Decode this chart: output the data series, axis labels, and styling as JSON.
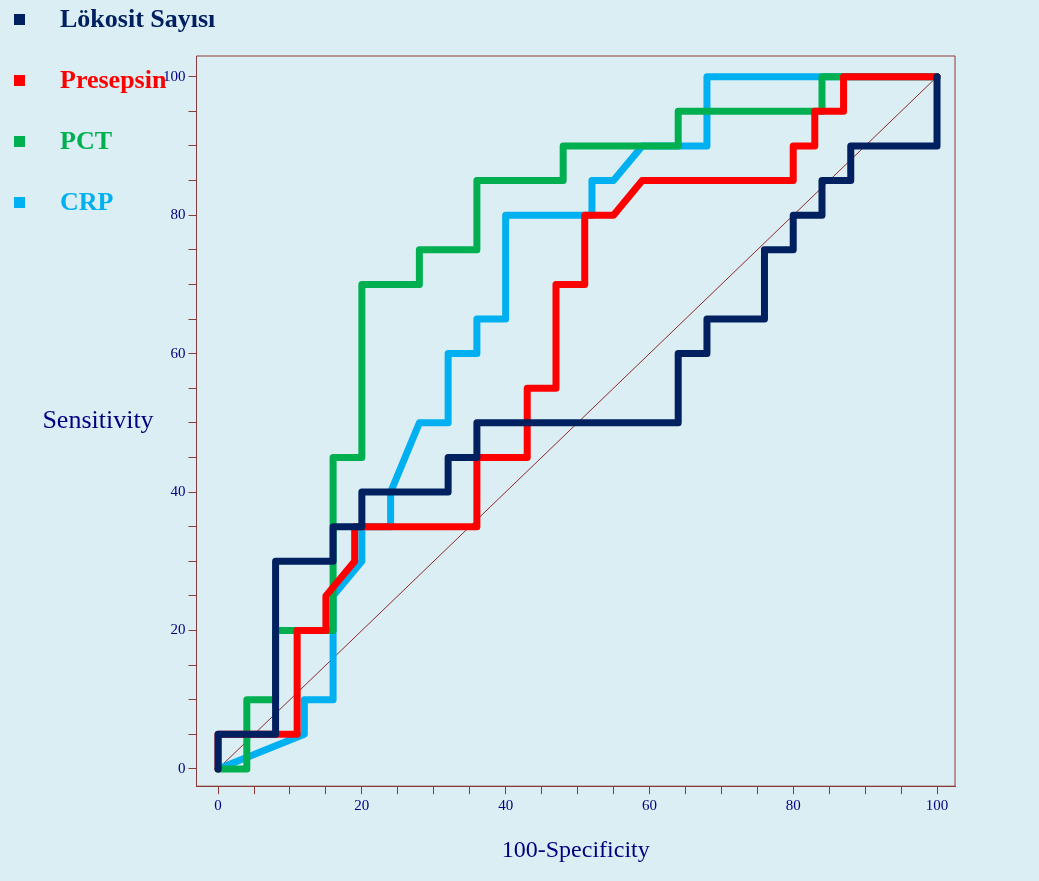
{
  "chart_data": {
    "type": "line",
    "xlabel": "100-Specificity",
    "ylabel": "Sensitivity",
    "xlim": [
      -3,
      102.5
    ],
    "ylim": [
      -2.5,
      103
    ],
    "xticks": [
      0,
      {
        "value": 5,
        "label": null
      },
      {
        "value": 10,
        "label": null
      },
      {
        "value": 15,
        "label": null
      },
      20,
      {
        "value": 25,
        "label": null
      },
      {
        "value": 30,
        "label": null
      },
      {
        "value": 35,
        "label": null
      },
      40,
      {
        "value": 45,
        "label": null
      },
      {
        "value": 50,
        "label": null
      },
      {
        "value": 55,
        "label": null
      },
      60,
      {
        "value": 65,
        "label": null
      },
      {
        "value": 70,
        "label": null
      },
      {
        "value": 75,
        "label": null
      },
      80,
      {
        "value": 85,
        "label": null
      },
      {
        "value": 90,
        "label": null
      },
      {
        "value": 95,
        "label": null
      },
      100
    ],
    "yticks": [
      0,
      {
        "value": 5,
        "label": null
      },
      {
        "value": 10,
        "label": null
      },
      {
        "value": 15,
        "label": null
      },
      20,
      {
        "value": 25,
        "label": null
      },
      {
        "value": 30,
        "label": null
      },
      {
        "value": 35,
        "label": null
      },
      40,
      {
        "value": 45,
        "label": null
      },
      {
        "value": 50,
        "label": null
      },
      {
        "value": 55,
        "label": null
      },
      60,
      {
        "value": 65,
        "label": null
      },
      {
        "value": 70,
        "label": null
      },
      {
        "value": 75,
        "label": null
      },
      80,
      {
        "value": 85,
        "label": null
      },
      {
        "value": 90,
        "label": null
      },
      {
        "value": 95,
        "label": null
      },
      100
    ],
    "legend": "top left",
    "marker": "none",
    "line_style": "solid",
    "grid": false,
    "series": [
      {
        "name": "Lökosit Sayısı",
        "color": "#002060",
        "x": [
          0,
          0,
          8,
          8,
          16,
          16,
          20,
          20,
          32,
          32,
          36,
          36,
          64,
          64,
          68,
          68,
          76,
          76,
          80,
          80,
          84,
          84,
          88,
          88,
          100,
          100
        ],
        "values": [
          0,
          5,
          5,
          30,
          30,
          35,
          35,
          40,
          40,
          45,
          45,
          50,
          50,
          60,
          60,
          65,
          65,
          75,
          75,
          80,
          80,
          85,
          85,
          90,
          90,
          100
        ]
      },
      {
        "name": "Presepsin",
        "color": "#ff0000",
        "x": [
          0,
          0,
          11,
          11,
          15,
          15,
          19,
          19,
          36,
          36,
          43,
          43,
          47,
          47,
          51,
          51,
          55,
          59,
          80,
          80,
          83,
          83,
          87,
          87,
          100
        ],
        "values": [
          0,
          5,
          5,
          20,
          20,
          25,
          30,
          35,
          35,
          45,
          45,
          55,
          55,
          70,
          70,
          80,
          80,
          85,
          85,
          90,
          90,
          95,
          95,
          100,
          100
        ]
      },
      {
        "name": "PCT",
        "color": "#00b050",
        "x": [
          0,
          4,
          4,
          8,
          8,
          16,
          16,
          20,
          20,
          28,
          28,
          36,
          36,
          48,
          48,
          64,
          64,
          84,
          84,
          100
        ],
        "values": [
          0,
          0,
          10,
          10,
          20,
          20,
          45,
          45,
          70,
          70,
          75,
          75,
          85,
          85,
          90,
          90,
          95,
          95,
          100,
          100
        ]
      },
      {
        "name": "CRP",
        "color": "#00b0f0",
        "x": [
          0,
          12,
          12,
          16,
          16,
          20,
          20,
          24,
          24,
          28,
          32,
          32,
          36,
          36,
          40,
          40,
          52,
          52,
          55,
          59,
          68,
          68,
          100
        ],
        "values": [
          0,
          5,
          10,
          10,
          25,
          30,
          35,
          35,
          40,
          50,
          50,
          60,
          60,
          65,
          65,
          80,
          80,
          85,
          85,
          90,
          90,
          100,
          100
        ]
      },
      {
        "type": "line",
        "color": "#8b2a2a",
        "x": [
          0,
          100
        ],
        "values": [
          0,
          100
        ]
      }
    ]
  }
}
